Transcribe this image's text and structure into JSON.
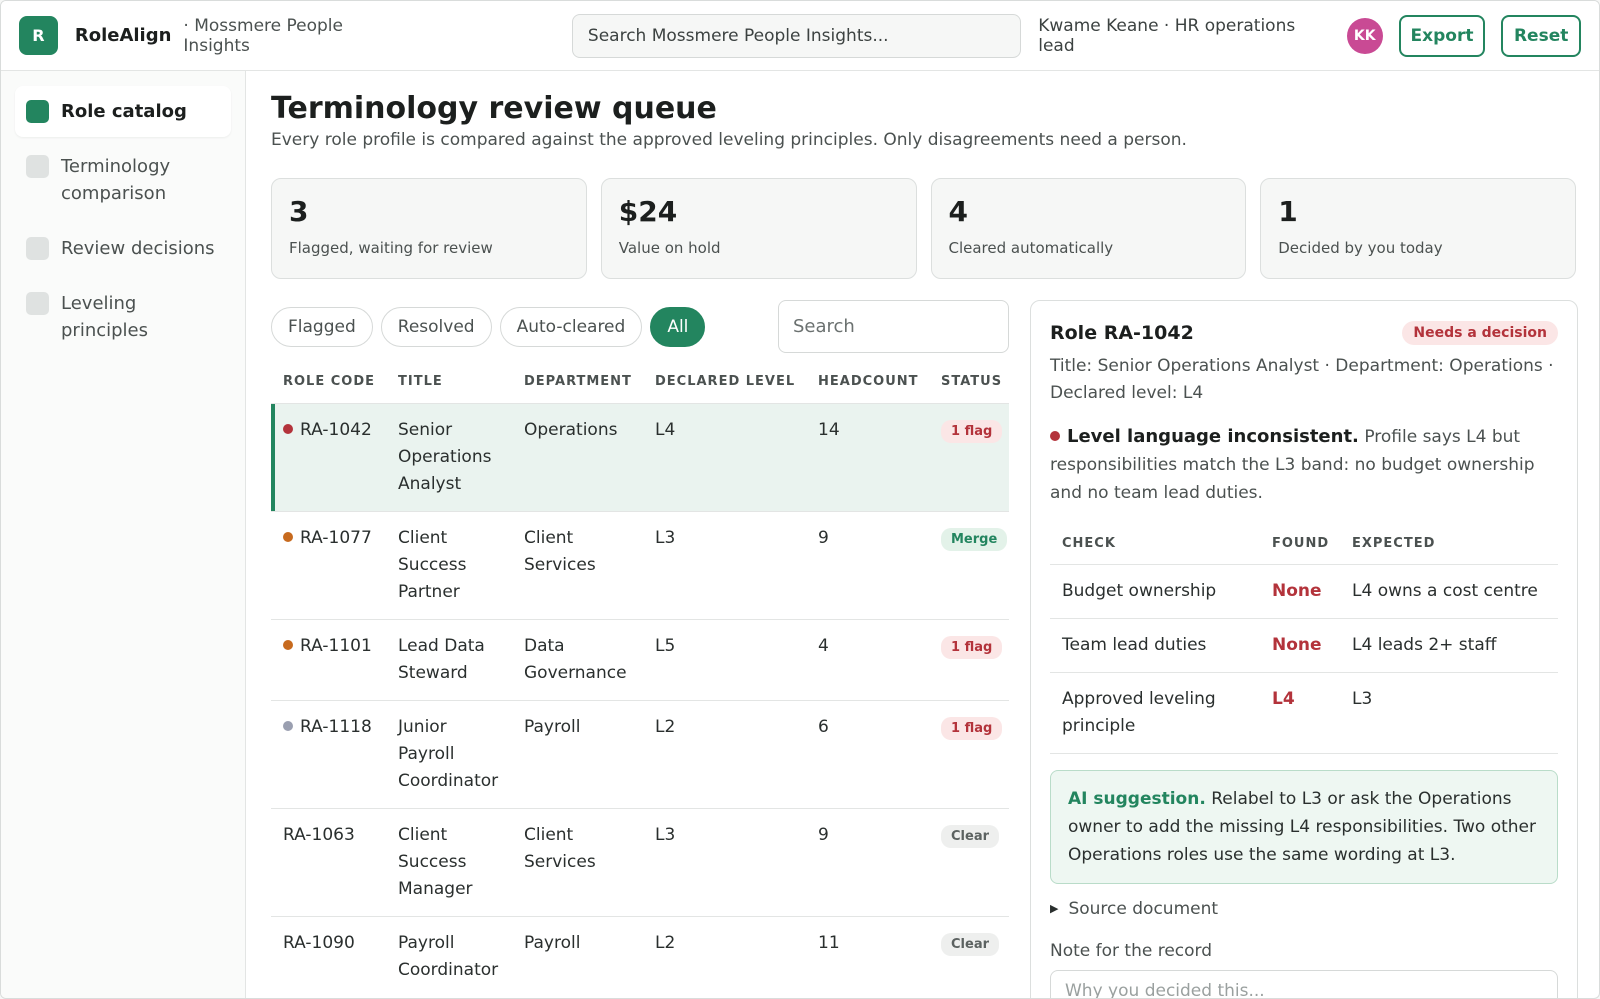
{
  "header": {
    "logo_letter": "R",
    "app_name": "RoleAlign",
    "workspace": "· Mossmere People Insights",
    "search_placeholder": "Search Mossmere People Insights...",
    "user": "Kwame Keane · HR operations lead",
    "avatar_initials": "KK",
    "export_label": "Export",
    "reset_label": "Reset"
  },
  "sidebar": {
    "items": [
      {
        "label": "Role catalog",
        "active": true
      },
      {
        "label": "Terminology comparison",
        "active": false
      },
      {
        "label": "Review decisions",
        "active": false
      },
      {
        "label": "Leveling principles",
        "active": false
      }
    ]
  },
  "main": {
    "title": "Terminology review queue",
    "description": "Every role profile is compared against the approved leveling principles. Only disagreements need a person.",
    "stats": [
      {
        "value": "3",
        "label": "Flagged, waiting for review"
      },
      {
        "value": "$24",
        "label": "Value on hold"
      },
      {
        "value": "4",
        "label": "Cleared automatically"
      },
      {
        "value": "1",
        "label": "Decided by you today"
      }
    ],
    "filters": [
      "Flagged",
      "Resolved",
      "Auto-cleared",
      "All"
    ],
    "active_filter": "All",
    "table_search_placeholder": "Search"
  },
  "table": {
    "columns": [
      "ROLE CODE",
      "TITLE",
      "DEPARTMENT",
      "DECLARED LEVEL",
      "HEADCOUNT",
      "STATUS"
    ],
    "rows": [
      {
        "code": "RA-1042",
        "title": "Senior Operations Analyst",
        "department": "Operations",
        "level": "L4",
        "headcount": "14",
        "status": "1 flag",
        "status_kind": "flag",
        "dot": "red",
        "selected": true
      },
      {
        "code": "RA-1077",
        "title": "Client Success Partner",
        "department": "Client Services",
        "level": "L3",
        "headcount": "9",
        "status": "Merge",
        "status_kind": "merge",
        "dot": "orange",
        "selected": false
      },
      {
        "code": "RA-1101",
        "title": "Lead Data Steward",
        "department": "Data Governance",
        "level": "L5",
        "headcount": "4",
        "status": "1 flag",
        "status_kind": "flag",
        "dot": "orange",
        "selected": false
      },
      {
        "code": "RA-1118",
        "title": "Junior Payroll Coordinator",
        "department": "Payroll",
        "level": "L2",
        "headcount": "6",
        "status": "1 flag",
        "status_kind": "flag",
        "dot": "gray",
        "selected": false
      },
      {
        "code": "RA-1063",
        "title": "Client Success Manager",
        "department": "Client Services",
        "level": "L3",
        "headcount": "9",
        "status": "Clear",
        "status_kind": "clear",
        "dot": "",
        "selected": false
      },
      {
        "code": "RA-1090",
        "title": "Payroll Coordinator",
        "department": "Payroll",
        "level": "L2",
        "headcount": "11",
        "status": "Clear",
        "status_kind": "clear",
        "dot": "",
        "selected": false
      }
    ]
  },
  "detail": {
    "title": "Role RA-1042",
    "badge": "Needs a decision",
    "meta": "Title: Senior Operations Analyst · Department: Operations · Declared level: L4",
    "issue_title": "Level language inconsistent.",
    "issue_text": "Profile says L4 but responsibilities match the L3 band: no budget ownership and no team lead duties.",
    "checks_columns": [
      "CHECK",
      "FOUND",
      "EXPECTED"
    ],
    "checks": [
      {
        "check": "Budget ownership",
        "found": "None",
        "expected": "L4 owns a cost centre"
      },
      {
        "check": "Team lead duties",
        "found": "None",
        "expected": "L4 leads 2+ staff"
      },
      {
        "check": "Approved leveling principle",
        "found": "L4",
        "expected": "L3"
      }
    ],
    "ai_label": "AI suggestion.",
    "ai_text": "Relabel to L3 or ask the Operations owner to add the missing L4 responsibilities. Two other Operations roles use the same wording at L3.",
    "source_label": "Source document",
    "note_label": "Note for the record",
    "note_placeholder": "Why you decided this..."
  },
  "colors": {
    "accent": "#23855f",
    "flag": "#b3333b",
    "dot_red": "#b3333b",
    "dot_orange": "#c76a1e",
    "dot_gray": "#9a9fb0"
  }
}
